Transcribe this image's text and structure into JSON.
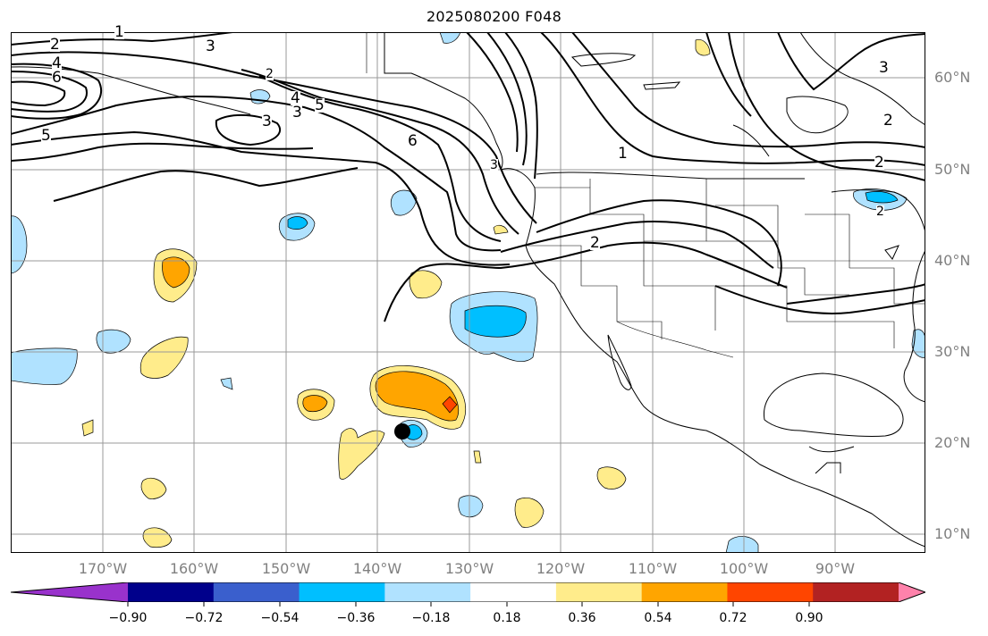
{
  "title": "2025080200 F048",
  "lat_labels": [
    "60°N",
    "50°N",
    "40°N",
    "30°N",
    "20°N",
    "10°N"
  ],
  "lon_labels": [
    "170°W",
    "160°W",
    "150°W",
    "140°W",
    "130°W",
    "120°W",
    "110°W",
    "100°W",
    "90°W"
  ],
  "contour_labels": [
    "1",
    "2",
    "3",
    "4",
    "5",
    "6",
    "2",
    "3",
    "3",
    "3",
    "4",
    "5",
    "6",
    "1",
    "2",
    "2",
    "2",
    "3",
    "2"
  ],
  "colorbar": {
    "ticks": [
      "−0.90",
      "−0.72",
      "−0.54",
      "−0.36",
      "−0.18",
      "0.18",
      "0.36",
      "0.54",
      "0.72",
      "0.90"
    ],
    "colors": [
      "#9932cc",
      "#00008b",
      "#3a5fcd",
      "#00bfff",
      "#b0e2ff",
      "#ffffff",
      "#ffec8b",
      "#ffa500",
      "#ff4500",
      "#b22222",
      "#ff82ab"
    ]
  },
  "anomaly_colors": {
    "neg_light": "#b0e2ff",
    "neg_mid": "#00bfff",
    "pos_light": "#ffec8b",
    "pos_mid": "#ffa500",
    "pos_high": "#ff4500"
  }
}
